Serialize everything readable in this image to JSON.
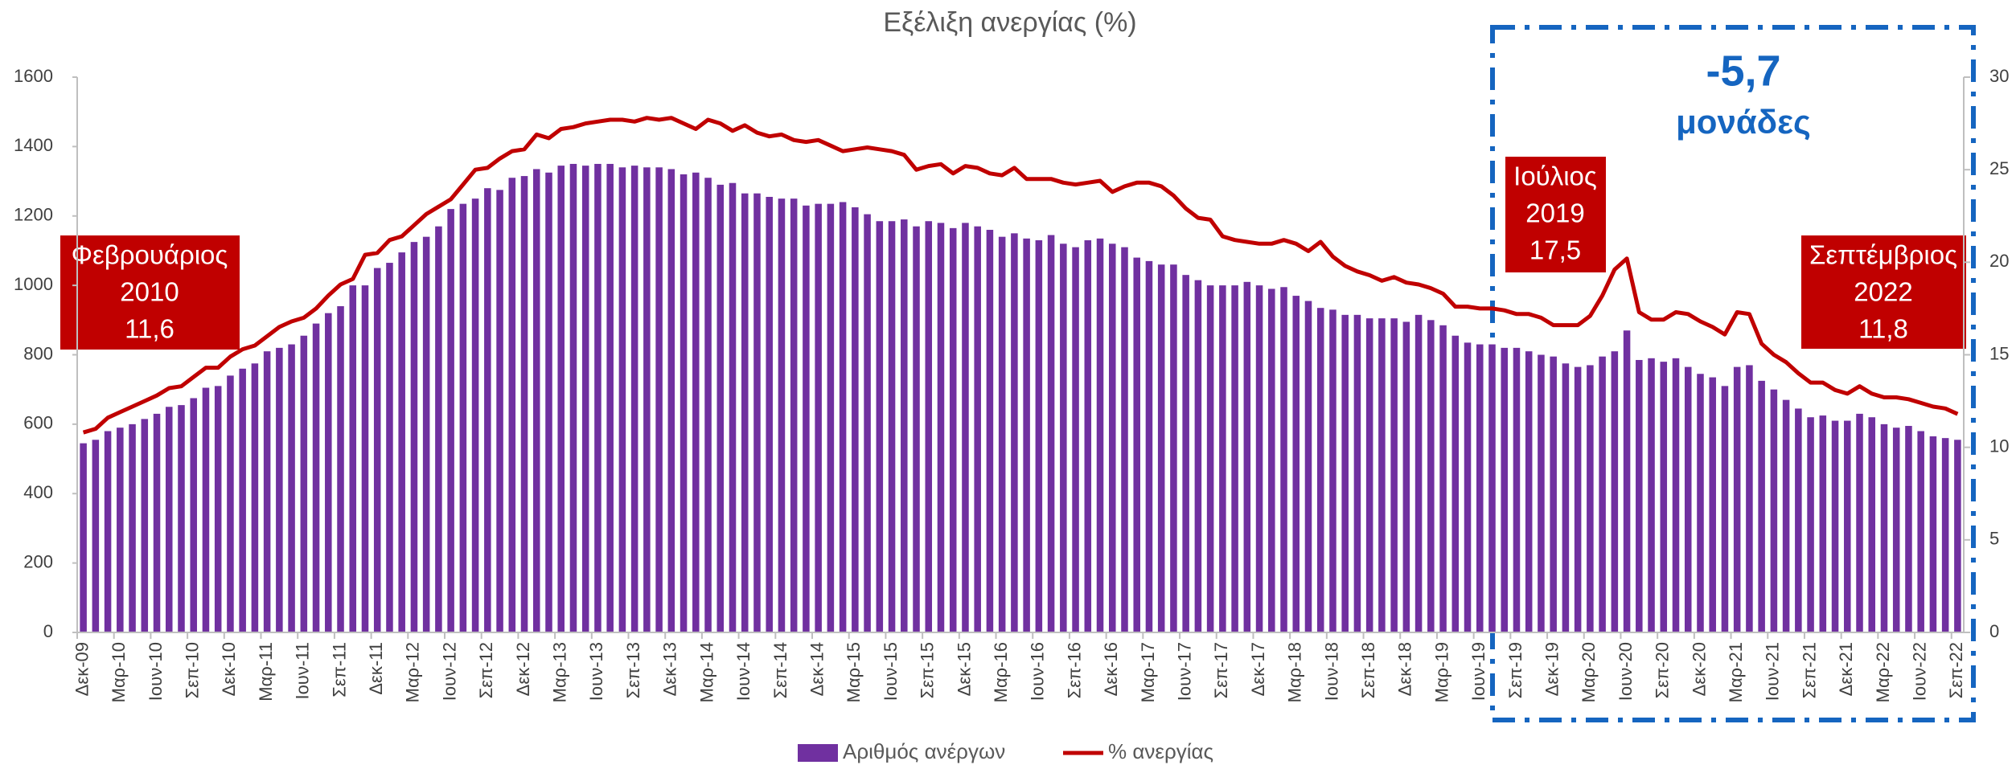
{
  "chart_data": {
    "type": "bar",
    "title": "Εξέλιξη ανεργίας (%)",
    "categories": [
      "Δεκ-09",
      null,
      null,
      "Μαρ-10",
      null,
      null,
      "Ιουν-10",
      null,
      null,
      "Σεπ-10",
      null,
      null,
      "Δεκ-10",
      null,
      null,
      "Μαρ-11",
      null,
      null,
      "Ιουν-11",
      null,
      null,
      "Σεπ-11",
      null,
      null,
      "Δεκ-11",
      null,
      null,
      "Μαρ-12",
      null,
      null,
      "Ιουν-12",
      null,
      null,
      "Σεπ-12",
      null,
      null,
      "Δεκ-12",
      null,
      null,
      "Μαρ-13",
      null,
      null,
      "Ιουν-13",
      null,
      null,
      "Σεπ-13",
      null,
      null,
      "Δεκ-13",
      null,
      null,
      "Μαρ-14",
      null,
      null,
      "Ιουν-14",
      null,
      null,
      "Σεπ-14",
      null,
      null,
      "Δεκ-14",
      null,
      null,
      "Μαρ-15",
      null,
      null,
      "Ιουν-15",
      null,
      null,
      "Σεπ-15",
      null,
      null,
      "Δεκ-15",
      null,
      null,
      "Μαρ-16",
      null,
      null,
      "Ιουν-16",
      null,
      null,
      "Σεπ-16",
      null,
      null,
      "Δεκ-16",
      null,
      null,
      "Μαρ-17",
      null,
      null,
      "Ιουν-17",
      null,
      null,
      "Σεπ-17",
      null,
      null,
      "Δεκ-17",
      null,
      null,
      "Μαρ-18",
      null,
      null,
      "Ιουν-18",
      null,
      null,
      "Σεπ-18",
      null,
      null,
      "Δεκ-18",
      null,
      null,
      "Μαρ-19",
      null,
      null,
      "Ιουν-19",
      null,
      null,
      "Σεπ-19",
      null,
      null,
      "Δεκ-19",
      null,
      null,
      "Μαρ-20",
      null,
      null,
      "Ιουν-20",
      null,
      null,
      "Σεπ-20",
      null,
      null,
      "Δεκ-20",
      null,
      null,
      "Μαρ-21",
      null,
      null,
      "Ιουν-21",
      null,
      null,
      "Σεπ-21",
      null,
      null,
      "Δεκ-21",
      null,
      null,
      "Μαρ-22",
      null,
      null,
      "Ιουν-22",
      null,
      null,
      "Σεπ-22"
    ],
    "series": [
      {
        "name": "Αριθμός ανέργων",
        "type": "bar",
        "color": "#7030a0",
        "values": [
          545,
          555,
          580,
          590,
          600,
          615,
          630,
          650,
          655,
          675,
          705,
          710,
          740,
          760,
          775,
          810,
          820,
          830,
          855,
          890,
          920,
          940,
          1000,
          1000,
          1050,
          1065,
          1095,
          1125,
          1140,
          1170,
          1220,
          1235,
          1250,
          1280,
          1275,
          1310,
          1315,
          1335,
          1325,
          1345,
          1350,
          1345,
          1350,
          1350,
          1340,
          1345,
          1340,
          1340,
          1335,
          1320,
          1325,
          1310,
          1290,
          1295,
          1265,
          1265,
          1255,
          1250,
          1250,
          1230,
          1235,
          1235,
          1240,
          1225,
          1205,
          1185,
          1185,
          1190,
          1170,
          1185,
          1180,
          1165,
          1180,
          1170,
          1160,
          1140,
          1150,
          1135,
          1130,
          1145,
          1120,
          1110,
          1130,
          1135,
          1120,
          1110,
          1080,
          1070,
          1060,
          1060,
          1030,
          1015,
          1000,
          1000,
          1000,
          1010,
          1000,
          990,
          995,
          970,
          955,
          935,
          930,
          915,
          915,
          905,
          905,
          905,
          895,
          915,
          900,
          885,
          855,
          835,
          830,
          830,
          820,
          820,
          810,
          800,
          795,
          775,
          765,
          770,
          795,
          810,
          870,
          785,
          790,
          780,
          790,
          765,
          745,
          735,
          710,
          765,
          770,
          725,
          700,
          670,
          645,
          620,
          625,
          610,
          610,
          630,
          620,
          600,
          590,
          595,
          580,
          565,
          560,
          555
        ]
      },
      {
        "name": "% ανεργίας",
        "type": "line",
        "axis": "y2",
        "color": "#c00000",
        "values": [
          10.8,
          11.0,
          11.6,
          11.9,
          12.2,
          12.5,
          12.8,
          13.2,
          13.3,
          13.8,
          14.3,
          14.3,
          14.9,
          15.3,
          15.5,
          16.0,
          16.5,
          16.8,
          17.0,
          17.5,
          18.2,
          18.8,
          19.1,
          20.4,
          20.5,
          21.2,
          21.4,
          22.0,
          22.6,
          23.0,
          23.4,
          24.2,
          25.0,
          25.1,
          25.6,
          26.0,
          26.1,
          26.9,
          26.7,
          27.2,
          27.3,
          27.5,
          27.6,
          27.7,
          27.7,
          27.6,
          27.8,
          27.7,
          27.8,
          27.5,
          27.2,
          27.7,
          27.5,
          27.1,
          27.4,
          27.0,
          26.8,
          26.9,
          26.6,
          26.5,
          26.6,
          26.3,
          26.0,
          26.1,
          26.2,
          26.1,
          26.0,
          25.8,
          25.0,
          25.2,
          25.3,
          24.8,
          25.2,
          25.1,
          24.8,
          24.7,
          25.1,
          24.5,
          24.5,
          24.5,
          24.3,
          24.2,
          24.3,
          24.4,
          23.8,
          24.1,
          24.3,
          24.3,
          24.1,
          23.6,
          22.9,
          22.4,
          22.3,
          21.4,
          21.2,
          21.1,
          21.0,
          21.0,
          21.2,
          21.0,
          20.6,
          21.1,
          20.3,
          19.8,
          19.5,
          19.3,
          19.0,
          19.2,
          18.9,
          18.8,
          18.6,
          18.3,
          17.6,
          17.6,
          17.5,
          17.5,
          17.4,
          17.2,
          17.2,
          17.0,
          16.6,
          16.6,
          16.6,
          17.1,
          18.2,
          19.6,
          20.2,
          17.3,
          16.9,
          16.9,
          17.3,
          17.2,
          16.8,
          16.5,
          16.1,
          17.3,
          17.2,
          15.6,
          15.0,
          14.6,
          14.0,
          13.5,
          13.5,
          13.1,
          12.9,
          13.3,
          12.9,
          12.7,
          12.7,
          12.6,
          12.4,
          12.2,
          12.1,
          11.8
        ]
      }
    ],
    "ylim": [
      0,
      1600
    ],
    "yticks": [
      0,
      200,
      400,
      600,
      800,
      1000,
      1200,
      1400,
      1600
    ],
    "y2lim": [
      0,
      30
    ],
    "y2ticks": [
      0,
      5,
      10,
      15,
      20,
      25,
      30
    ],
    "annotations": [
      {
        "lines": [
          "Φεβρουάριος",
          "2010",
          "11,6"
        ]
      },
      {
        "lines": [
          "Ιούλιος",
          "2019",
          "17,5"
        ]
      },
      {
        "lines": [
          "Σεπτέμβριος",
          "2022",
          "11,8"
        ]
      },
      {
        "lines": [
          "-5,7",
          "μονάδες"
        ]
      }
    ]
  }
}
